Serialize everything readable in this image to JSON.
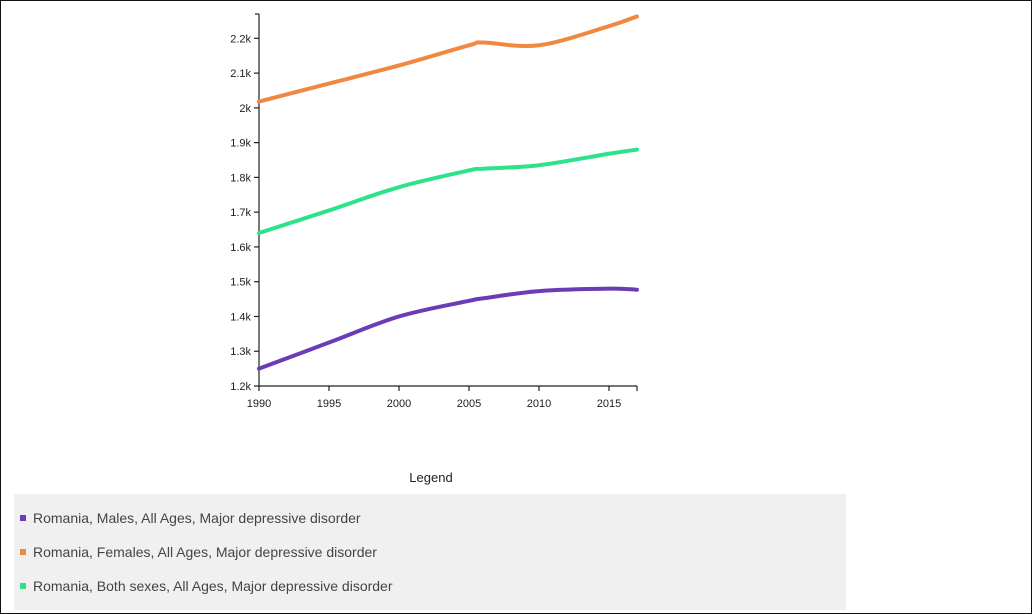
{
  "chart_data": {
    "type": "line",
    "x": [
      1990,
      1995,
      2000,
      2005,
      2006,
      2010,
      2015,
      2017
    ],
    "xticks": [
      "1990",
      "1995",
      "2000",
      "2005",
      "2010",
      "2015"
    ],
    "yticks": [
      "1.2k",
      "1.3k",
      "1.4k",
      "1.5k",
      "1.6k",
      "1.7k",
      "1.8k",
      "1.9k",
      "2k",
      "2.1k",
      "2.2k"
    ],
    "xlim": [
      1990,
      2017
    ],
    "ylim": [
      1200,
      2270
    ],
    "grid": false,
    "series": [
      {
        "name": "Romania, Males, All Ages, Major depressive disorder",
        "color": "#6a3db6",
        "values": [
          1250,
          1325,
          1400,
          1445,
          1452,
          1473,
          1480,
          1477
        ]
      },
      {
        "name": "Romania, Females, All Ages, Major depressive disorder",
        "color": "#f0893f",
        "values": [
          2018,
          2070,
          2122,
          2180,
          2188,
          2180,
          2235,
          2263
        ]
      },
      {
        "name": "Romania, Both sexes, All Ages, Major depressive disorder",
        "color": "#2de28a",
        "values": [
          1640,
          1705,
          1772,
          1820,
          1825,
          1835,
          1868,
          1880
        ]
      }
    ]
  },
  "legend": {
    "title": "Legend"
  }
}
